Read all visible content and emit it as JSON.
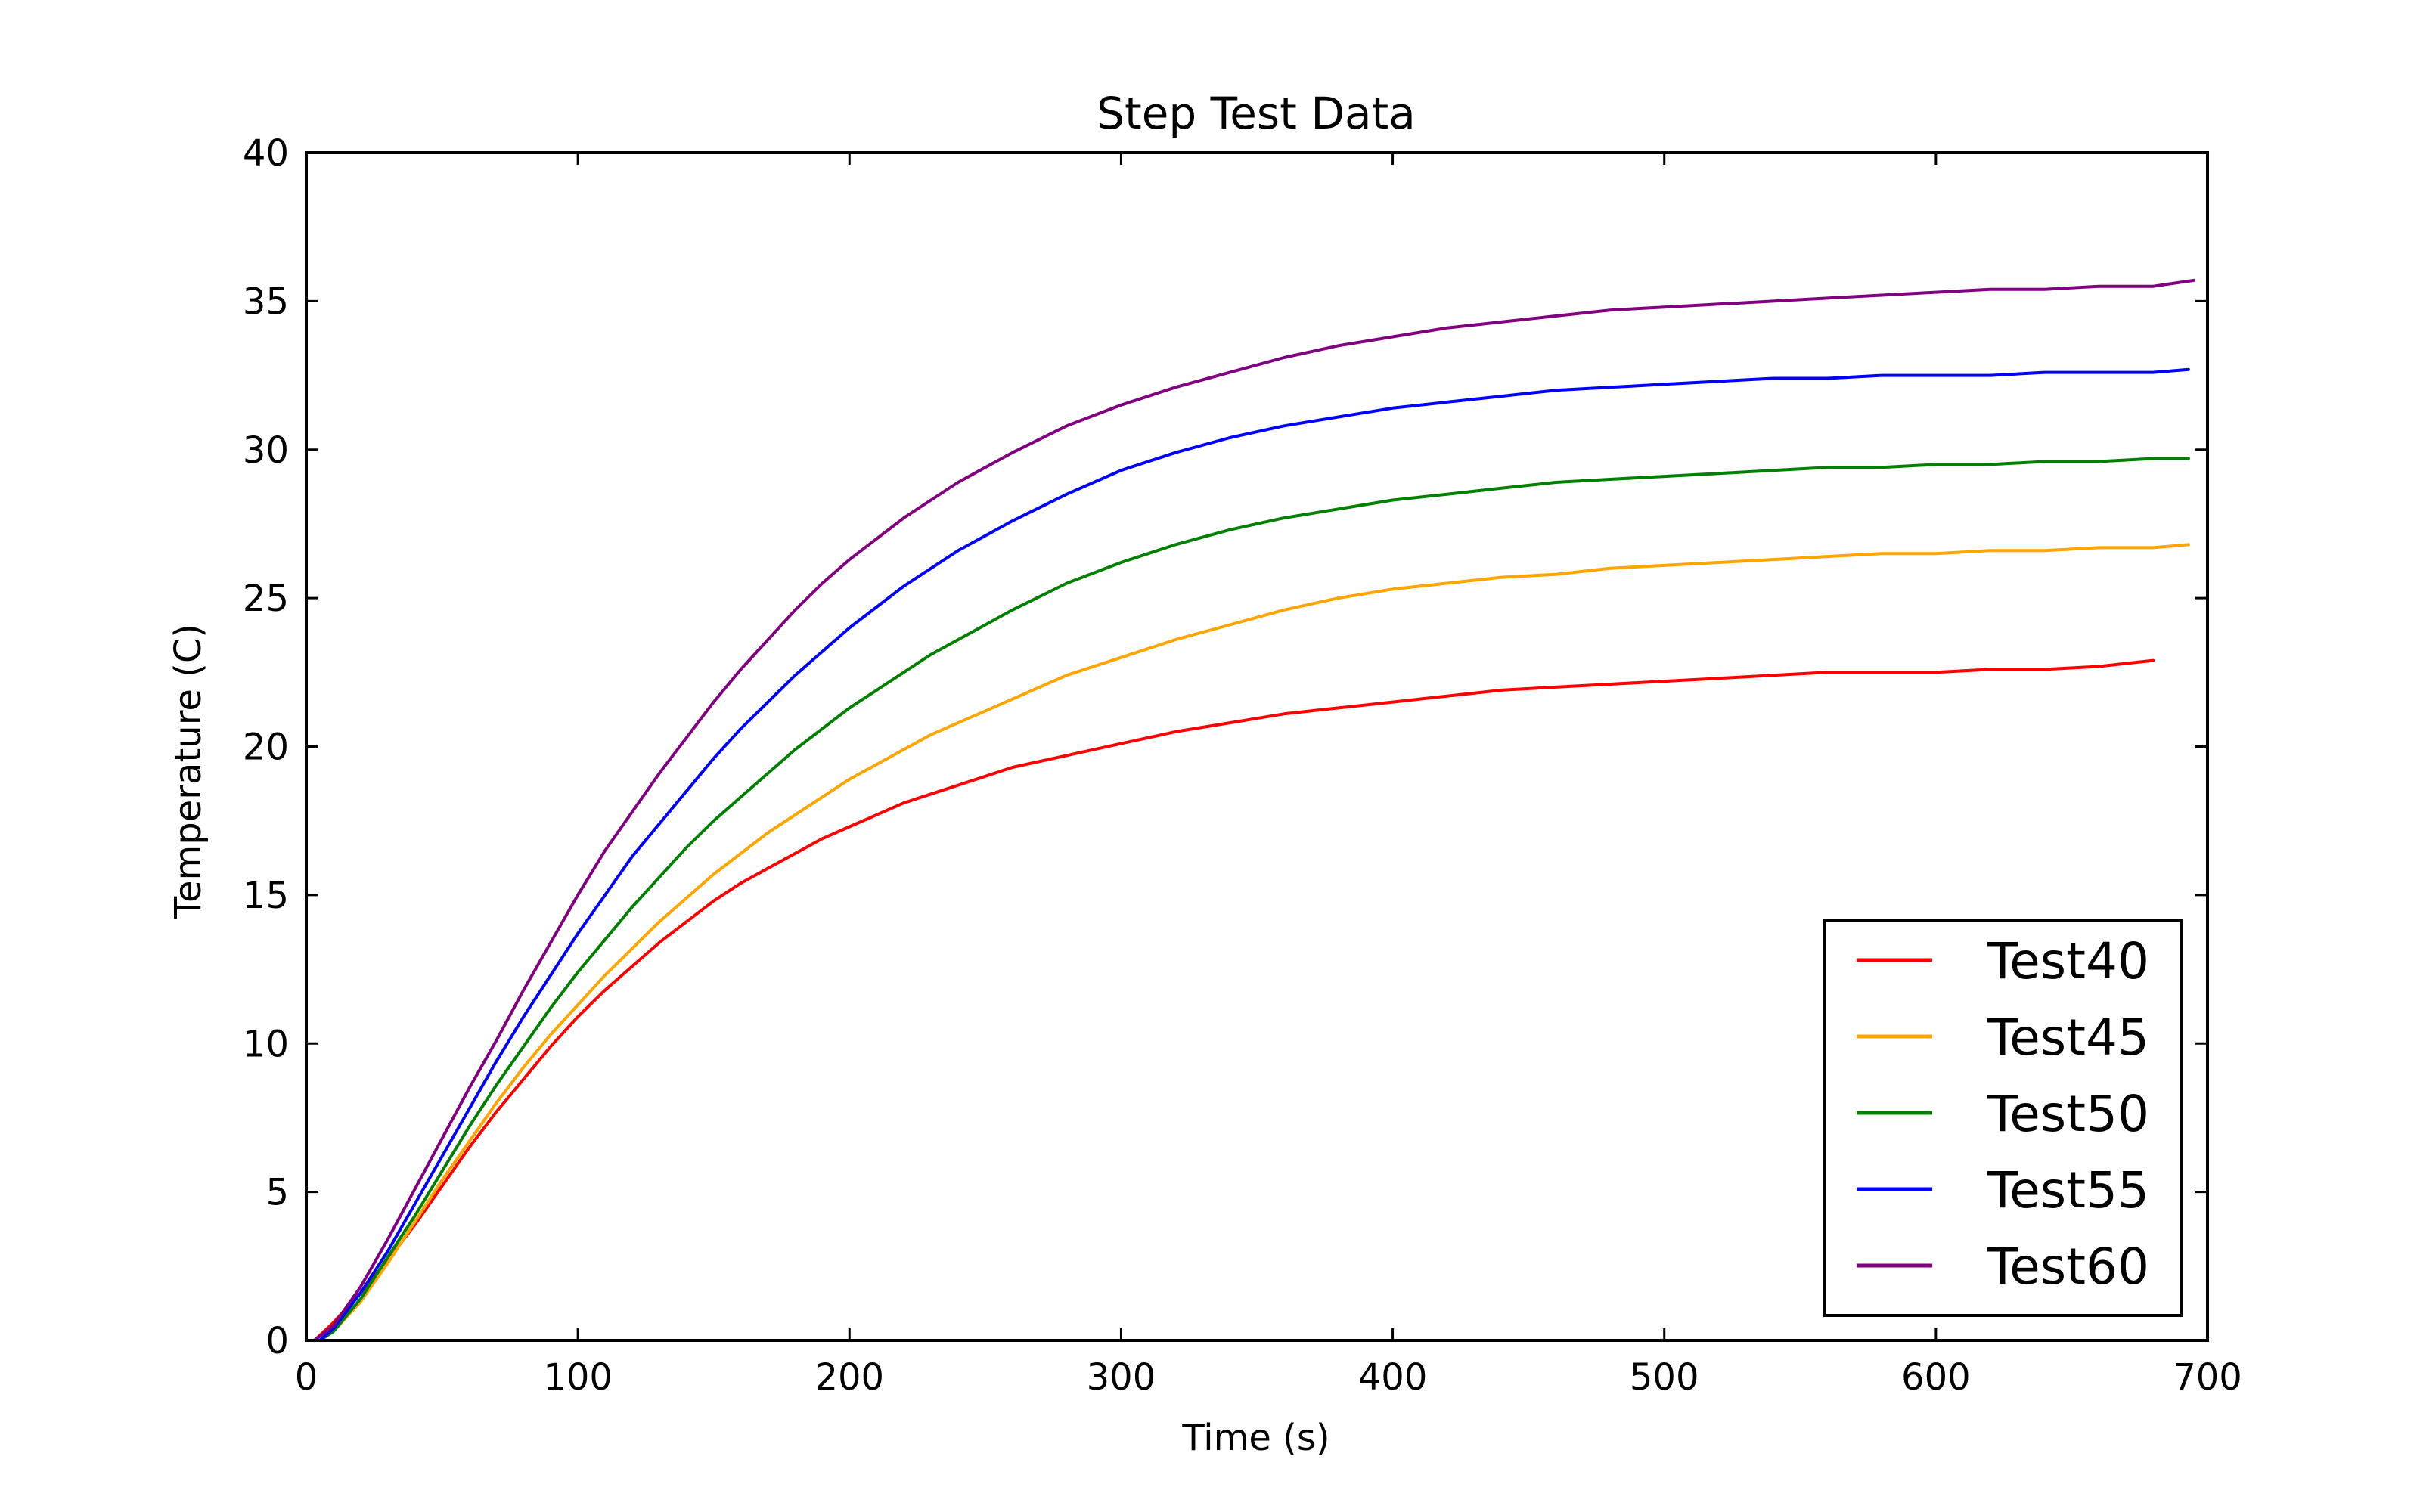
{
  "chart_data": {
    "type": "line",
    "title": "Step Test Data",
    "xlabel": "Time (s)",
    "ylabel": "Temperature (C)",
    "xlim": [
      0,
      700
    ],
    "ylim": [
      0,
      40
    ],
    "xticks": [
      0,
      100,
      200,
      300,
      400,
      500,
      600,
      700
    ],
    "yticks": [
      0,
      5,
      10,
      15,
      20,
      25,
      30,
      35,
      40
    ],
    "xtick_labels": [
      "0",
      "100",
      "200",
      "300",
      "400",
      "500",
      "600",
      "700"
    ],
    "ytick_labels": [
      "0",
      "5",
      "10",
      "15",
      "20",
      "25",
      "30",
      "35",
      "40"
    ],
    "grid": false,
    "legend_position": "lower-right",
    "series": [
      {
        "name": "Test40",
        "color": "#ff0000",
        "x": [
          3,
          10,
          20,
          30,
          40,
          50,
          60,
          70,
          80,
          90,
          100,
          110,
          120,
          130,
          140,
          150,
          160,
          170,
          180,
          190,
          200,
          210,
          220,
          230,
          240,
          250,
          260,
          280,
          300,
          320,
          340,
          360,
          380,
          400,
          420,
          440,
          460,
          480,
          500,
          520,
          540,
          560,
          580,
          600,
          620,
          640,
          660,
          680
        ],
        "y": [
          0.0,
          0.6,
          1.6,
          2.7,
          3.9,
          5.2,
          6.5,
          7.7,
          8.8,
          9.9,
          10.9,
          11.8,
          12.6,
          13.4,
          14.1,
          14.8,
          15.4,
          15.9,
          16.4,
          16.9,
          17.3,
          17.7,
          18.1,
          18.4,
          18.7,
          19.0,
          19.3,
          19.7,
          20.1,
          20.5,
          20.8,
          21.1,
          21.3,
          21.5,
          21.7,
          21.9,
          22.0,
          22.1,
          22.2,
          22.3,
          22.4,
          22.5,
          22.5,
          22.5,
          22.6,
          22.6,
          22.7,
          22.9
        ]
      },
      {
        "name": "Test45",
        "color": "#ffa500",
        "x": [
          5,
          10,
          20,
          30,
          40,
          50,
          60,
          70,
          80,
          90,
          100,
          110,
          120,
          130,
          140,
          150,
          160,
          170,
          180,
          190,
          200,
          210,
          220,
          230,
          240,
          250,
          260,
          280,
          300,
          320,
          340,
          360,
          380,
          400,
          420,
          440,
          460,
          480,
          500,
          520,
          540,
          560,
          580,
          600,
          620,
          640,
          660,
          680,
          693
        ],
        "y": [
          0.0,
          0.3,
          1.3,
          2.6,
          4.0,
          5.4,
          6.7,
          8.0,
          9.2,
          10.3,
          11.3,
          12.3,
          13.2,
          14.1,
          14.9,
          15.7,
          16.4,
          17.1,
          17.7,
          18.3,
          18.9,
          19.4,
          19.9,
          20.4,
          20.8,
          21.2,
          21.6,
          22.4,
          23.0,
          23.6,
          24.1,
          24.6,
          25.0,
          25.3,
          25.5,
          25.7,
          25.8,
          26.0,
          26.1,
          26.2,
          26.3,
          26.4,
          26.5,
          26.5,
          26.6,
          26.6,
          26.7,
          26.7,
          26.8
        ]
      },
      {
        "name": "Test50",
        "color": "#008000",
        "x": [
          5,
          10,
          20,
          30,
          40,
          50,
          60,
          70,
          80,
          90,
          100,
          110,
          120,
          130,
          140,
          150,
          160,
          170,
          180,
          190,
          200,
          210,
          220,
          230,
          240,
          250,
          260,
          280,
          300,
          320,
          340,
          360,
          380,
          400,
          420,
          440,
          460,
          480,
          500,
          520,
          540,
          560,
          580,
          600,
          620,
          640,
          660,
          680,
          693
        ],
        "y": [
          0.0,
          0.3,
          1.4,
          2.8,
          4.2,
          5.7,
          7.2,
          8.6,
          9.9,
          11.2,
          12.4,
          13.5,
          14.6,
          15.6,
          16.6,
          17.5,
          18.3,
          19.1,
          19.9,
          20.6,
          21.3,
          21.9,
          22.5,
          23.1,
          23.6,
          24.1,
          24.6,
          25.5,
          26.2,
          26.8,
          27.3,
          27.7,
          28.0,
          28.3,
          28.5,
          28.7,
          28.9,
          29.0,
          29.1,
          29.2,
          29.3,
          29.4,
          29.4,
          29.5,
          29.5,
          29.6,
          29.6,
          29.7,
          29.7
        ]
      },
      {
        "name": "Test55",
        "color": "#0000ff",
        "x": [
          5,
          10,
          20,
          30,
          40,
          50,
          60,
          70,
          80,
          90,
          100,
          110,
          120,
          130,
          140,
          150,
          160,
          170,
          180,
          190,
          200,
          210,
          220,
          230,
          240,
          250,
          260,
          280,
          300,
          320,
          340,
          360,
          380,
          400,
          420,
          440,
          460,
          480,
          500,
          520,
          540,
          560,
          580,
          600,
          620,
          640,
          660,
          680,
          693
        ],
        "y": [
          0.0,
          0.4,
          1.6,
          3.0,
          4.6,
          6.2,
          7.8,
          9.4,
          10.9,
          12.3,
          13.7,
          15.0,
          16.3,
          17.4,
          18.5,
          19.6,
          20.6,
          21.5,
          22.4,
          23.2,
          24.0,
          24.7,
          25.4,
          26.0,
          26.6,
          27.1,
          27.6,
          28.5,
          29.3,
          29.9,
          30.4,
          30.8,
          31.1,
          31.4,
          31.6,
          31.8,
          32.0,
          32.1,
          32.2,
          32.3,
          32.4,
          32.4,
          32.5,
          32.5,
          32.5,
          32.6,
          32.6,
          32.6,
          32.7
        ]
      },
      {
        "name": "Test60",
        "color": "#800080",
        "x": [
          3,
          10,
          20,
          30,
          40,
          50,
          60,
          70,
          80,
          90,
          100,
          110,
          120,
          130,
          140,
          150,
          160,
          170,
          180,
          190,
          200,
          210,
          220,
          230,
          240,
          250,
          260,
          280,
          300,
          320,
          340,
          360,
          380,
          400,
          420,
          440,
          460,
          480,
          500,
          520,
          540,
          560,
          580,
          600,
          620,
          640,
          660,
          680,
          695
        ],
        "y": [
          0.0,
          0.5,
          1.8,
          3.4,
          5.1,
          6.8,
          8.5,
          10.1,
          11.8,
          13.4,
          15.0,
          16.5,
          17.8,
          19.1,
          20.3,
          21.5,
          22.6,
          23.6,
          24.6,
          25.5,
          26.3,
          27.0,
          27.7,
          28.3,
          28.9,
          29.4,
          29.9,
          30.8,
          31.5,
          32.1,
          32.6,
          33.1,
          33.5,
          33.8,
          34.1,
          34.3,
          34.5,
          34.7,
          34.8,
          34.9,
          35.0,
          35.1,
          35.2,
          35.3,
          35.4,
          35.4,
          35.5,
          35.5,
          35.7
        ]
      }
    ]
  }
}
